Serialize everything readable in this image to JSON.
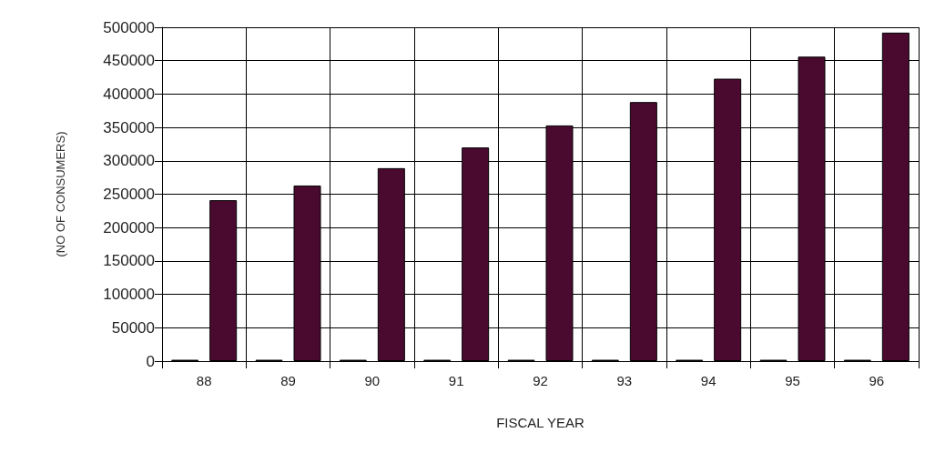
{
  "chart_data": {
    "type": "bar",
    "xlabel": "FISCAL YEAR",
    "ylabel": "(NO OF CONSUMERS)",
    "categories": [
      "88",
      "89",
      "90",
      "91",
      "92",
      "93",
      "94",
      "95",
      "96"
    ],
    "series": [
      {
        "color": "#2a1a22",
        "values": [
          2000,
          2000,
          2000,
          2000,
          2000,
          2000,
          2000,
          2000,
          2000
        ]
      },
      {
        "color": "#4a0a30",
        "values": [
          241000,
          263000,
          289000,
          320000,
          353000,
          388000,
          423000,
          456000,
          492000
        ]
      }
    ],
    "ylim": [
      0,
      500000
    ],
    "yticks": [
      0,
      50000,
      100000,
      150000,
      200000,
      250000,
      300000,
      350000,
      400000,
      450000,
      500000
    ],
    "grid": true
  }
}
